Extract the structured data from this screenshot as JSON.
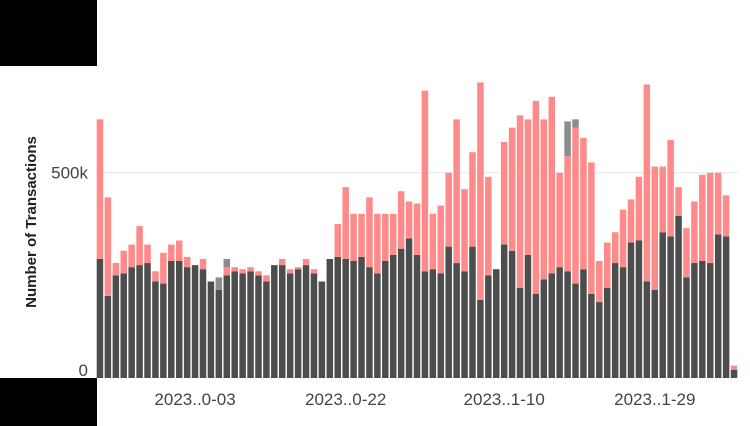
{
  "chart_data": {
    "type": "bar",
    "stacked": true,
    "title": "",
    "xlabel": "",
    "ylabel": "Number of Transactions",
    "ylim": [
      0,
      760000
    ],
    "y_ticks": [
      {
        "value": 0,
        "label": "0"
      },
      {
        "value": 500000,
        "label": "500k"
      }
    ],
    "x_tick_labels": [
      {
        "index": 12,
        "label": "2023..0-03"
      },
      {
        "index": 31,
        "label": "2023..0-22"
      },
      {
        "index": 51,
        "label": "2023..1-10"
      },
      {
        "index": 70,
        "label": "2023..1-29"
      }
    ],
    "grid": true,
    "legend": "none",
    "colors": {
      "bottom": "#4d4d4d",
      "middle": "#ff8a8a",
      "top": "#8c8c8c"
    },
    "series": [
      {
        "values": [
          290000,
          200000,
          250000,
          255000,
          270000,
          275000,
          280000,
          235000,
          230000,
          285000,
          285000,
          270000,
          275000,
          265000,
          235000,
          215000,
          250000,
          260000,
          255000,
          260000,
          250000,
          235000,
          275000,
          275000,
          255000,
          265000,
          275000,
          255000,
          235000,
          290000,
          295000,
          290000,
          285000,
          295000,
          270000,
          255000,
          285000,
          300000,
          315000,
          340000,
          300000,
          260000,
          265000,
          255000,
          320000,
          280000,
          260000,
          320000,
          190000,
          250000,
          265000,
          325000,
          310000,
          220000,
          300000,
          205000,
          240000,
          255000,
          270000,
          260000,
          230000,
          265000,
          205000,
          185000,
          220000,
          280000,
          270000,
          330000,
          335000,
          235000,
          215000,
          355000,
          345000,
          395000,
          245000,
          280000,
          285000,
          280000,
          350000,
          345000,
          20000
        ]
      },
      {
        "values": [
          340000,
          240000,
          30000,
          55000,
          55000,
          95000,
          45000,
          25000,
          75000,
          40000,
          50000,
          25000,
          0,
          25000,
          0,
          0,
          20000,
          10000,
          10000,
          10000,
          10000,
          15000,
          0,
          15000,
          10000,
          5000,
          15000,
          10000,
          0,
          0,
          80000,
          175000,
          115000,
          105000,
          170000,
          145000,
          115000,
          100000,
          140000,
          90000,
          125000,
          440000,
          135000,
          165000,
          180000,
          350000,
          200000,
          230000,
          530000,
          240000,
          0,
          250000,
          300000,
          420000,
          330000,
          470000,
          390000,
          430000,
          230000,
          280000,
          380000,
          320000,
          320000,
          100000,
          110000,
          75000,
          140000,
          105000,
          155000,
          480000,
          300000,
          160000,
          235000,
          70000,
          120000,
          150000,
          210000,
          220000,
          150000,
          100000,
          10000
        ]
      },
      {
        "values": [
          0,
          0,
          0,
          0,
          0,
          0,
          0,
          0,
          0,
          0,
          0,
          0,
          0,
          0,
          0,
          30000,
          20000,
          0,
          0,
          0,
          0,
          0,
          0,
          0,
          0,
          0,
          0,
          0,
          0,
          0,
          0,
          0,
          0,
          0,
          0,
          0,
          0,
          0,
          0,
          0,
          0,
          0,
          0,
          0,
          0,
          0,
          0,
          0,
          0,
          0,
          0,
          0,
          0,
          0,
          0,
          0,
          0,
          0,
          0,
          85000,
          20000,
          0,
          0,
          0,
          0,
          0,
          0,
          0,
          0,
          0,
          0,
          0,
          0,
          0,
          0,
          0,
          0,
          0,
          0,
          0,
          0
        ]
      }
    ]
  }
}
